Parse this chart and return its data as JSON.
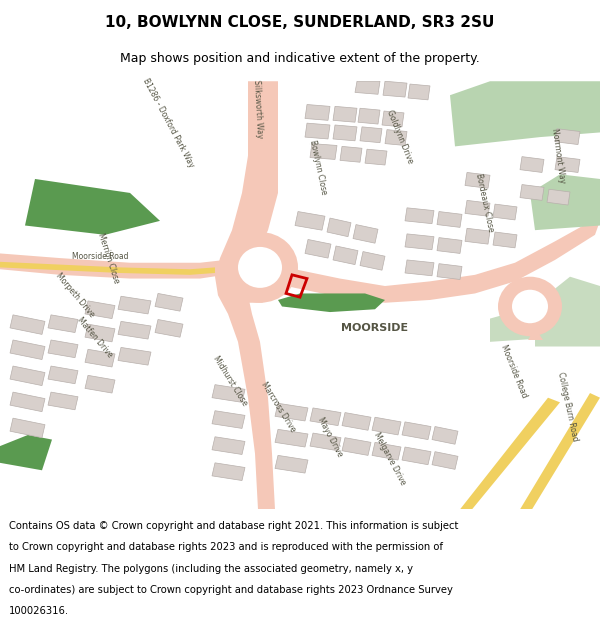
{
  "title_line1": "10, BOWLYNN CLOSE, SUNDERLAND, SR3 2SU",
  "title_line2": "Map shows position and indicative extent of the property.",
  "footer_lines": [
    "Contains OS data © Crown copyright and database right 2021. This information is subject",
    "to Crown copyright and database rights 2023 and is reproduced with the permission of",
    "HM Land Registry. The polygons (including the associated geometry, namely x, y",
    "co-ordinates) are subject to Crown copyright and database rights 2023 Ordnance Survey",
    "100026316."
  ],
  "road_color": "#f5c8b8",
  "green_dark": "#5a9a50",
  "green_light": "#b8d4b0",
  "green_mid": "#c8dcc0",
  "building_color": "#d8d0cc",
  "building_outline": "#b8b0ac",
  "road_label_color": "#555544",
  "highlight_red": "#cc0000",
  "yellow_road": "#f0d060",
  "title_fontsize": 11,
  "subtitle_fontsize": 9,
  "footer_fontsize": 7.2,
  "label_fontsize": 5.5
}
